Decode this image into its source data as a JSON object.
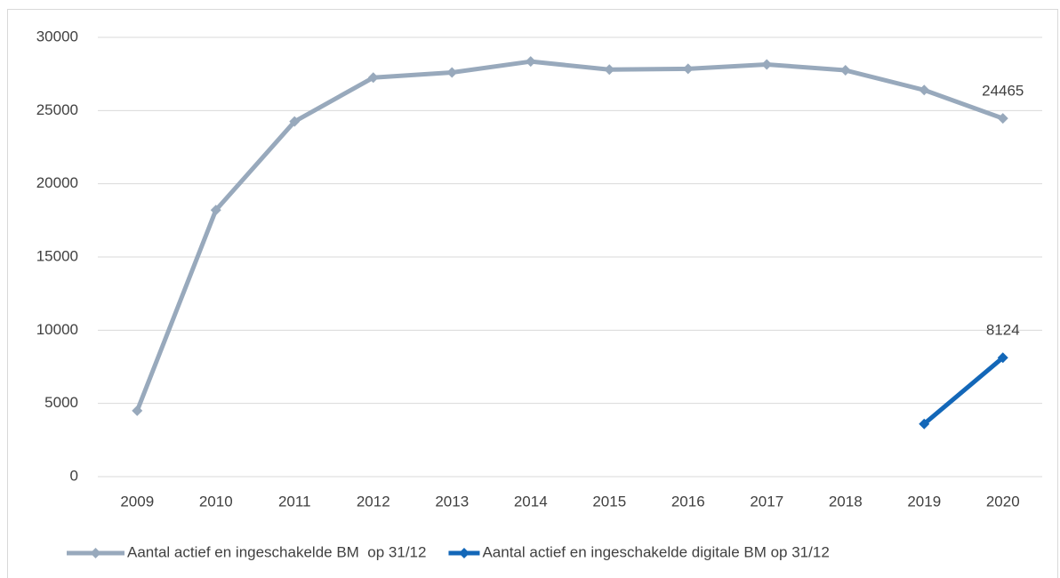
{
  "chart_data": {
    "type": "line",
    "categories": [
      "2009",
      "2010",
      "2011",
      "2012",
      "2013",
      "2014",
      "2015",
      "2016",
      "2017",
      "2018",
      "2019",
      "2020"
    ],
    "series": [
      {
        "name": "Aantal actief en ingeschakelde BM  op 31/12",
        "color": "#98a9bc",
        "values": [
          4500,
          18200,
          24250,
          27250,
          27600,
          28350,
          27800,
          27850,
          28150,
          27750,
          26400,
          24465
        ],
        "data_labels": "last"
      },
      {
        "name": "Aantal actief en ingeschakelde digitale BM op 31/12",
        "color": "#1367b8",
        "values": [
          null,
          null,
          null,
          null,
          null,
          null,
          null,
          null,
          null,
          null,
          3600,
          8124
        ],
        "data_labels": "last"
      }
    ],
    "ylim": [
      0,
      30000
    ],
    "yticks": [
      0,
      5000,
      10000,
      15000,
      20000,
      25000,
      30000
    ],
    "grid": true,
    "legend": "bottom"
  }
}
